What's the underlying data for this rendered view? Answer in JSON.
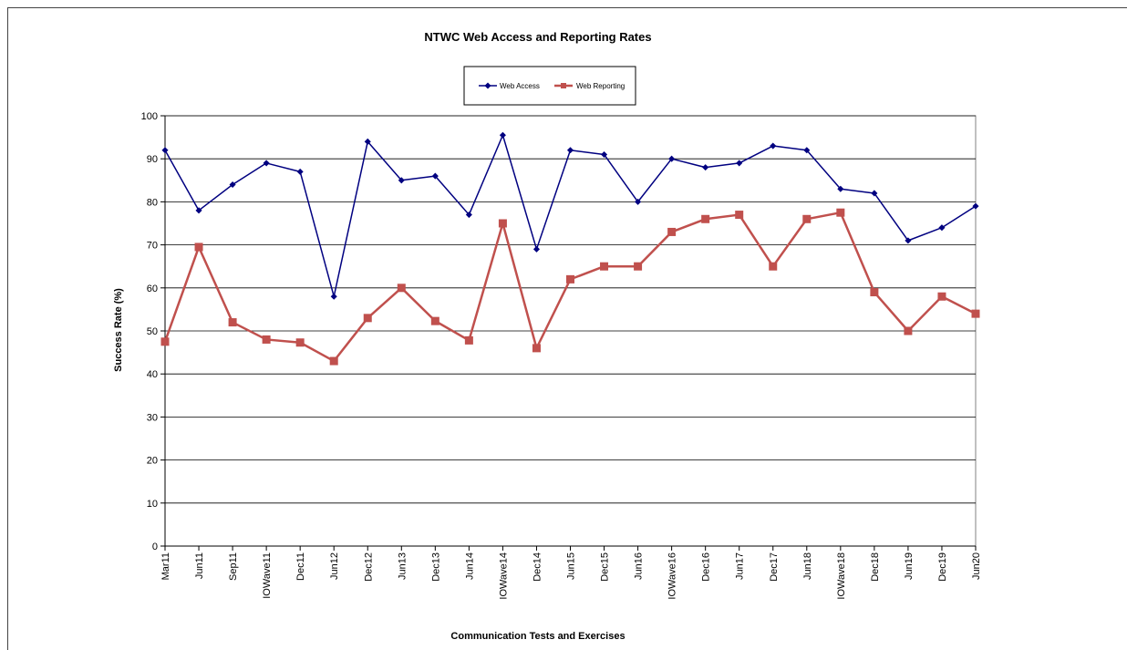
{
  "chart_data": {
    "type": "line",
    "title": "NTWC Web Access and Reporting Rates",
    "xlabel": "Communication Tests and Exercises",
    "ylabel": "Success Rate (%)",
    "ylim": [
      0,
      100
    ],
    "y_ticks": [
      0,
      10,
      20,
      30,
      40,
      50,
      60,
      70,
      80,
      90,
      100
    ],
    "grid": true,
    "legend_position": "top-center",
    "categories": [
      "Mar11",
      "Jun11",
      "Sep11",
      "IOWave11",
      "Dec11",
      "Jun12",
      "Dec12",
      "Jun13",
      "Dec13",
      "Jun14",
      "IOWave14",
      "Dec14",
      "Jun15",
      "Dec15",
      "Jun16",
      "IOWave16",
      "Dec16",
      "Jun17",
      "Dec17",
      "Jun18",
      "IOWave18",
      "Dec18",
      "Jun19",
      "Dec19",
      "Jun20"
    ],
    "series": [
      {
        "name": "Web Access",
        "color": "#000080",
        "marker": "diamond",
        "values": [
          92,
          78,
          84,
          89,
          87,
          58,
          94,
          85,
          86,
          77,
          95.5,
          69,
          92,
          91,
          80,
          90,
          88,
          89,
          93,
          92,
          83,
          82,
          71,
          74,
          79
        ]
      },
      {
        "name": "Web Reporting",
        "color": "#C0504D",
        "marker": "square",
        "values": [
          47.5,
          69.5,
          52,
          48,
          47.3,
          43,
          53,
          60,
          52.3,
          47.8,
          75,
          46,
          62,
          65,
          65,
          73,
          76,
          77,
          65,
          76,
          77.5,
          59,
          50,
          58,
          54
        ]
      }
    ]
  }
}
